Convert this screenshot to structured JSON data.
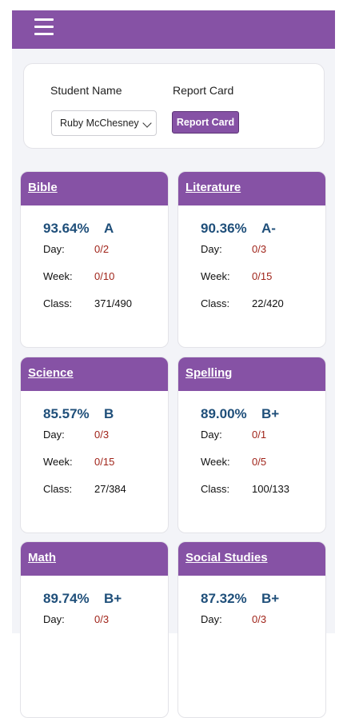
{
  "nav": {
    "menu_icon": "hamburger-menu-icon"
  },
  "filters": {
    "student_label": "Student Name",
    "report_label": "Report Card",
    "student_selected": "Ruby McChesney",
    "report_button": "Report Card"
  },
  "stat_labels": {
    "day": "Day:",
    "week": "Week:",
    "class": "Class:"
  },
  "courses": [
    {
      "name": "Bible",
      "percent": "93.64%",
      "grade": "A",
      "day": "0/2",
      "week": "0/10",
      "class": "371/490"
    },
    {
      "name": "Literature",
      "percent": "90.36%",
      "grade": "A-",
      "day": "0/3",
      "week": "0/15",
      "class": "22/420"
    },
    {
      "name": "Science",
      "percent": "85.57%",
      "grade": "B",
      "day": "0/3",
      "week": "0/15",
      "class": "27/384"
    },
    {
      "name": "Spelling",
      "percent": "89.00%",
      "grade": "B+",
      "day": "0/1",
      "week": "0/5",
      "class": "100/133"
    },
    {
      "name": "Math",
      "percent": "89.74%",
      "grade": "B+",
      "day": "0/3",
      "week": "",
      "class": ""
    },
    {
      "name": "Social Studies",
      "percent": "87.32%",
      "grade": "B+",
      "day": "0/3",
      "week": "",
      "class": ""
    }
  ],
  "colors": {
    "accent": "#8652a5",
    "score": "#1f4f7a",
    "missing": "#a0241a",
    "background": "#f3f4f8"
  }
}
